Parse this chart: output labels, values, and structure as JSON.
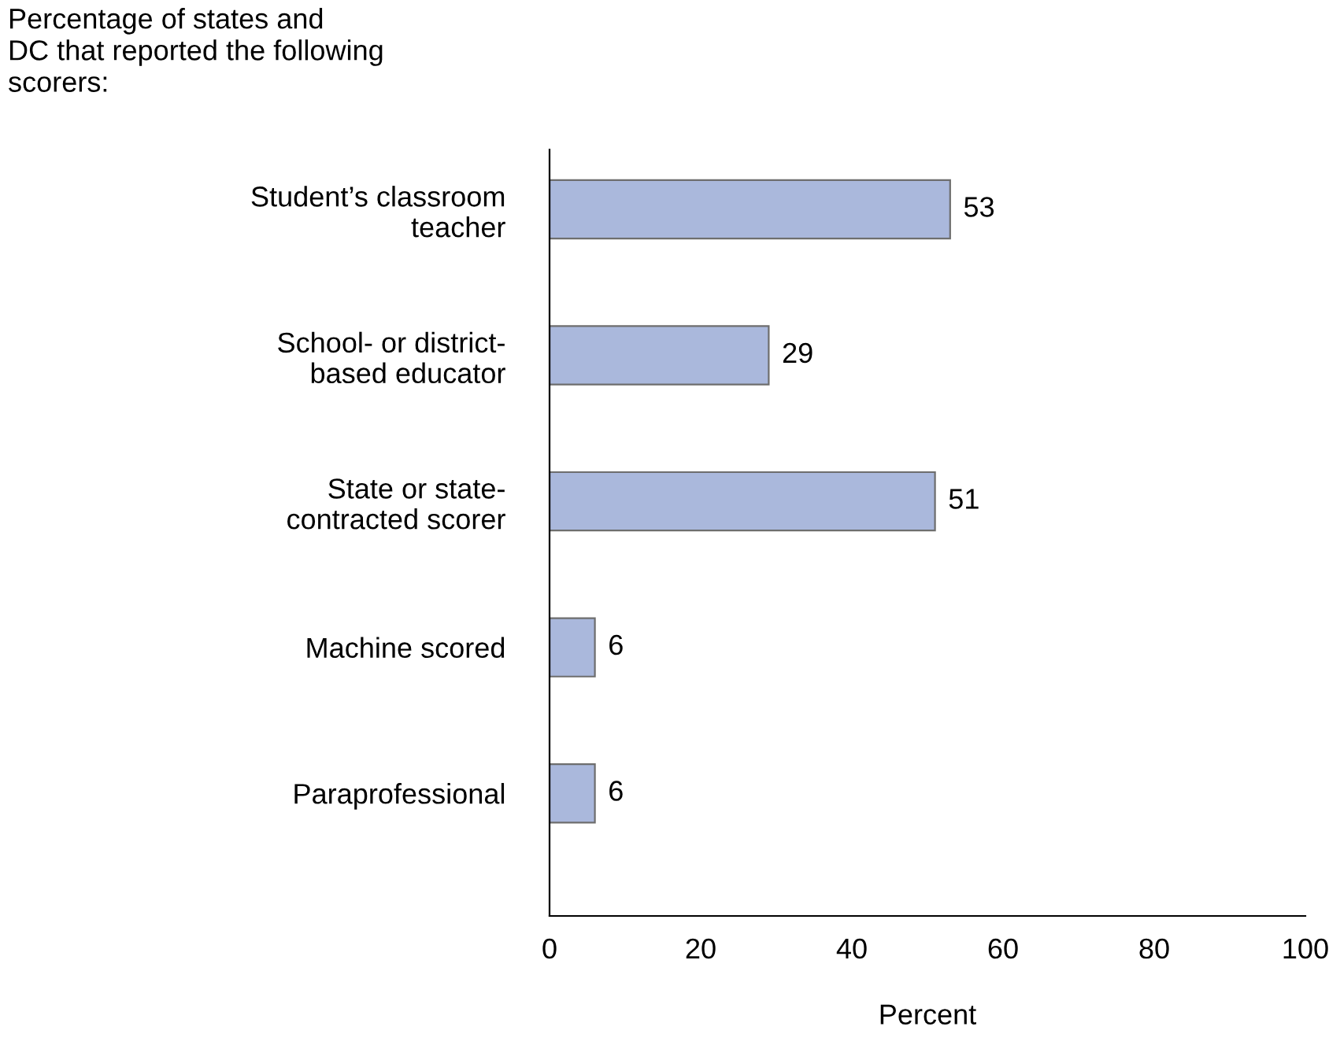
{
  "chart_data": {
    "type": "bar",
    "orientation": "horizontal",
    "title": "Percentage of states and\nDC that reported the following\nscorers:",
    "categories": [
      "Student’s classroom\nteacher",
      "School- or district-\nbased educator",
      "State or state-\ncontracted scorer",
      "Machine scored",
      "Paraprofessional"
    ],
    "values": [
      53,
      29,
      51,
      6,
      6
    ],
    "color": "#aab8dc",
    "xlim": [
      0,
      100
    ],
    "xticks": [
      0,
      20,
      40,
      60,
      80,
      100
    ],
    "xlabel": "Percent",
    "data_labels": true,
    "grid": false,
    "legend": false
  }
}
